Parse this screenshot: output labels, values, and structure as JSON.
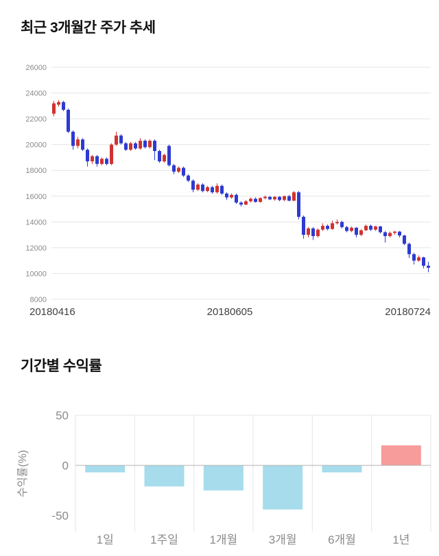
{
  "price_section": {
    "title": "최근 3개월간 주가 추세"
  },
  "returns_section": {
    "title": "기간별 수익률"
  },
  "chart_data": [
    {
      "type": "candlestick",
      "title": "최근 3개월간 주가 추세",
      "ylim": [
        8000,
        26000
      ],
      "y_ticks": [
        26000,
        24000,
        22000,
        20000,
        18000,
        16000,
        14000,
        12000,
        10000,
        8000
      ],
      "x_ticks": [
        "20180416",
        "20180605",
        "20180724"
      ],
      "grid": "horizontal",
      "legend": "none",
      "up_color": "#cf3331",
      "down_color": "#2d3bd1",
      "gridline_color": "#e4e4e4",
      "tick_color": "#8a8a8a",
      "candles_ohlc": [
        [
          22400,
          23400,
          22200,
          23200
        ],
        [
          23100,
          23450,
          22950,
          23300
        ],
        [
          23300,
          23400,
          22600,
          22700
        ],
        [
          22700,
          22800,
          20900,
          21000
        ],
        [
          21000,
          21100,
          19600,
          19900
        ],
        [
          19900,
          20600,
          19700,
          20400
        ],
        [
          20400,
          20500,
          19500,
          19600
        ],
        [
          19600,
          19700,
          18300,
          18700
        ],
        [
          18700,
          19200,
          18500,
          19100
        ],
        [
          19100,
          19200,
          18300,
          18500
        ],
        [
          18500,
          19000,
          18400,
          18900
        ],
        [
          18900,
          19000,
          18400,
          18500
        ],
        [
          18500,
          20100,
          18400,
          20000
        ],
        [
          20000,
          21000,
          19900,
          20700
        ],
        [
          20700,
          20800,
          20000,
          20100
        ],
        [
          20100,
          20200,
          19500,
          19600
        ],
        [
          19600,
          20200,
          19500,
          20100
        ],
        [
          20100,
          20200,
          19600,
          19700
        ],
        [
          19700,
          20500,
          19600,
          20300
        ],
        [
          20300,
          20400,
          19700,
          19800
        ],
        [
          19800,
          20400,
          19700,
          20300
        ],
        [
          20300,
          20400,
          18800,
          19500
        ],
        [
          19500,
          19600,
          18600,
          18700
        ],
        [
          18700,
          19300,
          18600,
          19200
        ],
        [
          19900,
          20000,
          18300,
          18400
        ],
        [
          18400,
          18500,
          17700,
          17900
        ],
        [
          17900,
          18300,
          17800,
          18200
        ],
        [
          18200,
          18300,
          17500,
          17600
        ],
        [
          17600,
          17700,
          17100,
          17200
        ],
        [
          17200,
          17300,
          16300,
          16500
        ],
        [
          16500,
          17000,
          16400,
          16900
        ],
        [
          16900,
          17000,
          16300,
          16400
        ],
        [
          16400,
          16800,
          16300,
          16700
        ],
        [
          16700,
          16800,
          16200,
          16300
        ],
        [
          16300,
          17000,
          16200,
          16800
        ],
        [
          16800,
          16900,
          16100,
          16200
        ],
        [
          16200,
          16300,
          15700,
          15900
        ],
        [
          15900,
          16200,
          15800,
          16100
        ],
        [
          16100,
          16200,
          15400,
          15500
        ],
        [
          15500,
          15600,
          15200,
          15350
        ],
        [
          15350,
          15700,
          15300,
          15600
        ],
        [
          15600,
          15900,
          15500,
          15800
        ],
        [
          15800,
          15900,
          15500,
          15550
        ],
        [
          15550,
          15900,
          15500,
          15850
        ],
        [
          15850,
          16050,
          15750,
          15950
        ],
        [
          15950,
          16000,
          15700,
          15750
        ],
        [
          15750,
          16000,
          15650,
          15950
        ],
        [
          15950,
          16000,
          15600,
          15700
        ],
        [
          15700,
          16050,
          15600,
          16000
        ],
        [
          16000,
          16100,
          15600,
          15650
        ],
        [
          15650,
          16400,
          15600,
          16300
        ],
        [
          16300,
          16400,
          14200,
          14400
        ],
        [
          14400,
          14500,
          12700,
          13000
        ],
        [
          13000,
          13600,
          12800,
          13500
        ],
        [
          13500,
          13600,
          12600,
          12900
        ],
        [
          12900,
          13500,
          12800,
          13400
        ],
        [
          13400,
          13900,
          13300,
          13700
        ],
        [
          13700,
          13800,
          13350,
          13450
        ],
        [
          13450,
          14100,
          13400,
          13900
        ],
        [
          13900,
          14200,
          13800,
          14000
        ],
        [
          14000,
          14100,
          13500,
          13600
        ],
        [
          13600,
          13700,
          13200,
          13300
        ],
        [
          13300,
          13650,
          13200,
          13550
        ],
        [
          13550,
          13600,
          12800,
          13000
        ],
        [
          13000,
          13450,
          12900,
          13350
        ],
        [
          13350,
          13800,
          13300,
          13700
        ],
        [
          13700,
          13800,
          13300,
          13400
        ],
        [
          13400,
          13700,
          13300,
          13650
        ],
        [
          13650,
          13700,
          13100,
          13200
        ],
        [
          13200,
          13300,
          12400,
          12900
        ],
        [
          12900,
          13250,
          12800,
          13150
        ],
        [
          13150,
          13300,
          13000,
          13250
        ],
        [
          13250,
          13300,
          12800,
          12950
        ],
        [
          12950,
          13000,
          12200,
          12300
        ],
        [
          12300,
          12400,
          11200,
          11500
        ],
        [
          11500,
          11600,
          10700,
          11000
        ],
        [
          11000,
          11400,
          10900,
          11250
        ],
        [
          11250,
          11300,
          10400,
          10600
        ],
        [
          10600,
          10900,
          10100,
          10450
        ]
      ]
    },
    {
      "type": "bar",
      "title": "기간별 수익률",
      "ylabel": "수익률(%)",
      "categories": [
        "1일",
        "1주일",
        "1개월",
        "3개월",
        "6개월",
        "1년"
      ],
      "values": [
        -7,
        -21,
        -25,
        -44,
        -7,
        20
      ],
      "y_ticks": [
        50,
        0,
        -50
      ],
      "ylim": [
        -50,
        50
      ],
      "grid": "on",
      "legend": "none",
      "negative_color": "#a6dcec",
      "positive_color": "#f79b9b",
      "gridline_color": "#e6e6e6",
      "zeroline_color": "#b3b3b3",
      "tick_color": "#8a8a8a"
    }
  ]
}
